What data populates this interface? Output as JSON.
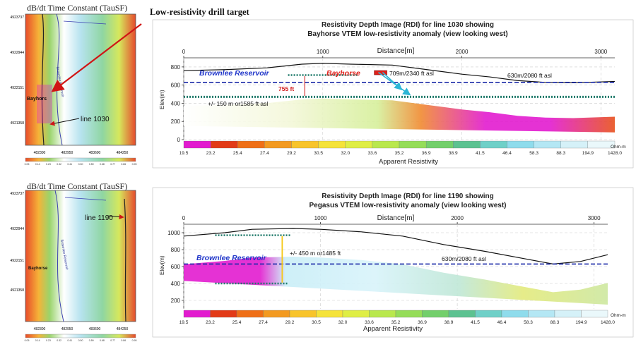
{
  "annotation_target": "Low-resistivity drill target",
  "maps": [
    {
      "title": "dB/dt Time Constant (TauSF)",
      "y_ticks": [
        "4923737",
        "4922944",
        "4922151",
        "4921358"
      ],
      "x_ticks": [
        "482300",
        "482950",
        "483600",
        "484250"
      ],
      "scale_ticks": [
        "0.05",
        "0.14",
        "0.23",
        "0.32",
        "0.41",
        "0.50",
        "0.59",
        "0.68",
        "0.77",
        "0.86",
        "0.95"
      ],
      "line_label": "line 1030",
      "place_label": "Bayhors",
      "reservoir_label": "Brownlee Reservoir"
    },
    {
      "title": "dB/dt Time Constant (TauSF)",
      "y_ticks": [
        "4923737",
        "4922944",
        "4922151",
        "4921358"
      ],
      "x_ticks": [
        "482300",
        "482950",
        "483600",
        "484250"
      ],
      "scale_ticks": [
        "0.05",
        "0.14",
        "0.23",
        "0.32",
        "0.41",
        "0.50",
        "0.59",
        "0.68",
        "0.77",
        "0.86",
        "0.95"
      ],
      "line_label": "line 1190",
      "place_label": "Bayhorse",
      "reservoir_label": "Brownlee Reservoir"
    }
  ],
  "chart_data": [
    {
      "type": "heatmap",
      "title": "Resistivity Depth Image (RDI) for line 1030 showing",
      "subtitle": "Bayhorse VTEM low-resistivity anomaly (view looking west)",
      "xlabel": "Distance[m]",
      "ylabel": "Elev(m)",
      "x_ticks": [
        0,
        1000,
        2000,
        3000
      ],
      "y_ticks": [
        0,
        200,
        400,
        600,
        800
      ],
      "xlim": [
        0,
        3100
      ],
      "ylim": [
        0,
        900
      ],
      "colorbar": {
        "label": "Apparent Resistivity",
        "unit": "Ohm-m",
        "values": [
          "19.5",
          "23.2",
          "25.4",
          "27.4",
          "29.2",
          "30.5",
          "32.0",
          "33.6",
          "35.2",
          "36.9",
          "38.9",
          "41.5",
          "46.4",
          "58.3",
          "88.3",
          "194.9",
          "1428.0"
        ],
        "colors": [
          "#e21bcf",
          "#e23a17",
          "#ef6f17",
          "#f39a21",
          "#f8c42b",
          "#f5e33a",
          "#dfee45",
          "#b9e84d",
          "#95dd58",
          "#73cf6b",
          "#5cc291",
          "#6fd0c8",
          "#8fdcec",
          "#b4e7f4",
          "#d5f1f8",
          "#eaf8fb",
          "#ffffff"
        ]
      },
      "topography": [
        [
          0,
          760
        ],
        [
          300,
          770
        ],
        [
          600,
          790
        ],
        [
          850,
          830
        ],
        [
          1000,
          840
        ],
        [
          1200,
          830
        ],
        [
          1500,
          820
        ],
        [
          1750,
          770
        ],
        [
          2000,
          720
        ],
        [
          2200,
          690
        ],
        [
          2400,
          650
        ],
        [
          2600,
          630
        ],
        [
          2800,
          625
        ],
        [
          3100,
          640
        ]
      ],
      "annotations": {
        "reservoir": "Brownlee Reservoir",
        "place": "Bayhorse",
        "height": "755 ft",
        "depth": "+/- 150 m or1585 ft asl",
        "target_elev": "709m/2340 ft asl",
        "water_level": "630m/2080 ft asl"
      }
    },
    {
      "type": "heatmap",
      "title": "Resistivity Depth Image (RDI) for line 1190 showing",
      "subtitle": "Pegasus VTEM low-resistivity anomaly (view looking west)",
      "xlabel": "Distance[m]",
      "ylabel": "Elev(m)",
      "x_ticks": [
        0,
        1000,
        2000,
        3000
      ],
      "y_ticks": [
        200,
        400,
        600,
        800,
        1000
      ],
      "xlim": [
        0,
        3100
      ],
      "ylim": [
        100,
        1100
      ],
      "colorbar": {
        "label": "Apparent Resistivity",
        "unit": "Ohm-m",
        "values": [
          "19.5",
          "23.2",
          "25.4",
          "27.4",
          "29.2",
          "30.5",
          "32.0",
          "33.6",
          "35.2",
          "36.9",
          "38.9",
          "41.5",
          "46.4",
          "58.3",
          "88.3",
          "194.9",
          "1428.0"
        ],
        "colors": [
          "#e21bcf",
          "#e23a17",
          "#ef6f17",
          "#f39a21",
          "#f8c42b",
          "#f5e33a",
          "#dfee45",
          "#b9e84d",
          "#95dd58",
          "#73cf6b",
          "#5cc291",
          "#6fd0c8",
          "#8fdcec",
          "#b4e7f4",
          "#d5f1f8",
          "#eaf8fb",
          "#ffffff"
        ]
      },
      "topography": [
        [
          0,
          960
        ],
        [
          300,
          1000
        ],
        [
          500,
          1040
        ],
        [
          800,
          1050
        ],
        [
          1000,
          1040
        ],
        [
          1300,
          1010
        ],
        [
          1600,
          960
        ],
        [
          1900,
          860
        ],
        [
          2200,
          780
        ],
        [
          2500,
          690
        ],
        [
          2700,
          630
        ],
        [
          2900,
          660
        ],
        [
          3100,
          740
        ]
      ],
      "annotations": {
        "reservoir": "Brownlee Reservoir",
        "depth": "+/- 450 m or1485 ft",
        "water_level": "630m/2080 ft asl"
      }
    }
  ],
  "colors": {
    "reservoir_text": "#1f35c9",
    "place_text": "#e0201a",
    "dotted_marker": "#1f7a6a",
    "water_line": "#1b2aa8",
    "arrow": "#d01515",
    "target_arrow": "#2cb6d6"
  }
}
